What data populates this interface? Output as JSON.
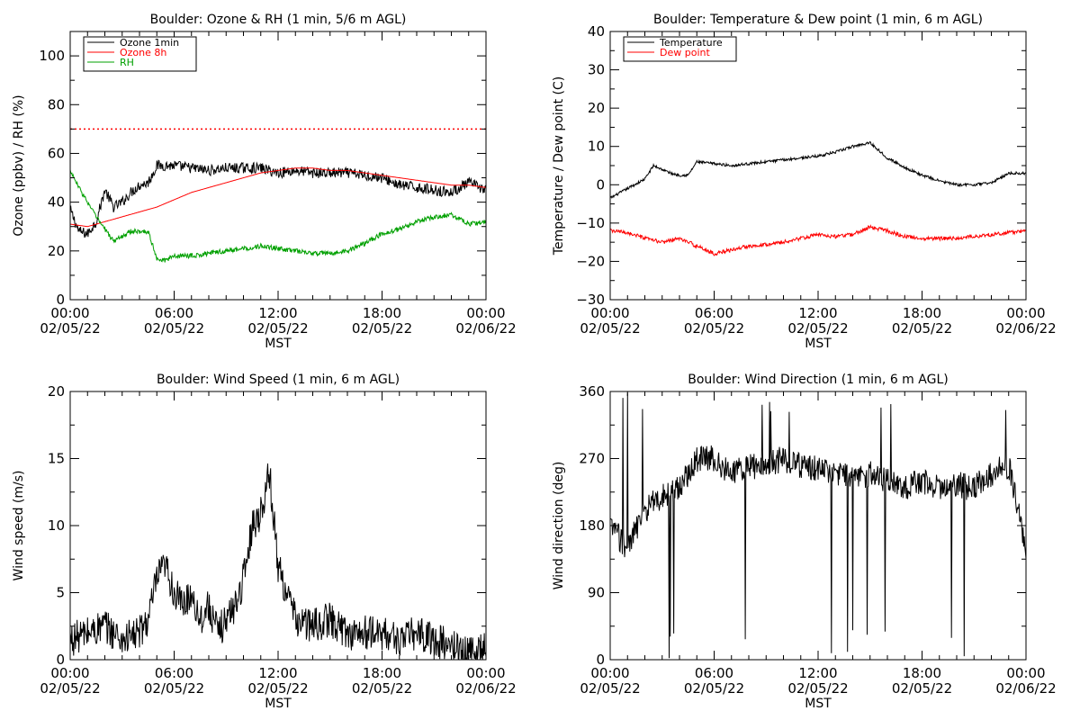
{
  "chart_data": [
    {
      "type": "line",
      "title": "Boulder: Ozone & RH (1 min, 5/6 m AGL)",
      "xlabel": "MST",
      "ylabel": "Ozone (ppbv) / RH (%)",
      "xlim": [
        0,
        24
      ],
      "ylim": [
        0,
        110
      ],
      "yticks": [
        "0",
        "20",
        "40",
        "60",
        "80",
        "100"
      ],
      "ytick_values": [
        0,
        20,
        40,
        60,
        80,
        100
      ],
      "xtick_labels": [
        {
          "time": "00:00",
          "date": "02/05/22"
        },
        {
          "time": "06:00",
          "date": "02/05/22"
        },
        {
          "time": "12:00",
          "date": "02/05/22"
        },
        {
          "time": "18:00",
          "date": "02/05/22"
        },
        {
          "time": "00:00",
          "date": "02/06/22"
        }
      ],
      "xtick_values": [
        0,
        6,
        12,
        18,
        24
      ],
      "legend_position": "top-left",
      "reference_line": {
        "y": 70,
        "color": "#ff0000",
        "style": "dotted"
      },
      "series": [
        {
          "name": "Ozone 1min",
          "color": "#000000",
          "noise": 2.2,
          "x": [
            0,
            0.5,
            1,
            1.5,
            2,
            2.5,
            3,
            3.5,
            4,
            4.5,
            5,
            6,
            7,
            8,
            9,
            10,
            11,
            12,
            13,
            14,
            15,
            16,
            17,
            18,
            19,
            20,
            21,
            22,
            23,
            24
          ],
          "values": [
            37,
            28,
            27,
            32,
            45,
            38,
            40,
            44,
            47,
            48,
            55,
            55,
            54,
            53,
            54,
            54,
            54,
            52,
            53,
            52,
            52,
            52,
            51,
            50,
            47,
            46,
            45,
            44,
            48,
            45
          ]
        },
        {
          "name": "Ozone 8h",
          "color": "#ff0000",
          "noise": 0,
          "x": [
            0,
            1,
            2,
            3,
            4,
            5,
            6,
            7,
            8,
            9,
            10,
            11,
            12,
            13,
            14,
            15,
            16,
            17,
            18,
            19,
            20,
            21,
            22,
            23,
            24
          ],
          "values": [
            31,
            30,
            32,
            34,
            36,
            38,
            41,
            44,
            46,
            48,
            50,
            52,
            53,
            54,
            54,
            53,
            53,
            52,
            51,
            50,
            49,
            48,
            47,
            47,
            46
          ]
        },
        {
          "name": "RH",
          "color": "#00a000",
          "noise": 1.0,
          "x": [
            0,
            0.5,
            1,
            1.5,
            2,
            2.5,
            3,
            3.5,
            4,
            4.5,
            5,
            5.5,
            6,
            7,
            8,
            9,
            10,
            11,
            12,
            13,
            14,
            15,
            16,
            17,
            18,
            19,
            20,
            21,
            22,
            23,
            24
          ],
          "values": [
            53,
            46,
            40,
            34,
            29,
            24,
            26,
            28,
            28,
            28,
            17,
            16,
            18,
            18,
            19,
            20,
            21,
            22,
            21,
            20,
            19,
            19,
            20,
            23,
            27,
            29,
            32,
            34,
            35,
            31,
            32
          ]
        }
      ]
    },
    {
      "type": "line",
      "title": "Boulder: Temperature & Dew point (1 min, 6 m AGL)",
      "xlabel": "MST",
      "ylabel": "Temperature / Dew point (C)",
      "xlim": [
        0,
        24
      ],
      "ylim": [
        -30,
        40
      ],
      "yticks": [
        "−30",
        "−20",
        "−10",
        "0",
        "10",
        "20",
        "30",
        "40"
      ],
      "ytick_values": [
        -30,
        -20,
        -10,
        0,
        10,
        20,
        30,
        40
      ],
      "xtick_labels": [
        {
          "time": "00:00",
          "date": "02/05/22"
        },
        {
          "time": "06:00",
          "date": "02/05/22"
        },
        {
          "time": "12:00",
          "date": "02/05/22"
        },
        {
          "time": "18:00",
          "date": "02/05/22"
        },
        {
          "time": "00:00",
          "date": "02/06/22"
        }
      ],
      "xtick_values": [
        0,
        6,
        12,
        18,
        24
      ],
      "legend_position": "top-left",
      "series": [
        {
          "name": "Temperature",
          "color": "#000000",
          "noise": 0.35,
          "x": [
            0,
            1,
            2,
            2.5,
            3,
            3.5,
            4,
            4.5,
            5,
            6,
            7,
            8,
            9,
            10,
            11,
            12,
            13,
            14,
            14.5,
            15,
            15.5,
            16,
            17,
            18,
            19,
            20,
            21,
            22,
            23,
            24
          ],
          "values": [
            -3.5,
            -1,
            1.5,
            5,
            4,
            3,
            2.5,
            2.5,
            6,
            5.5,
            5,
            5.5,
            6,
            6.5,
            7,
            7.5,
            8.5,
            10,
            10.5,
            11,
            9,
            7,
            4.5,
            2.5,
            1,
            0,
            0,
            0.5,
            3,
            3
          ]
        },
        {
          "name": "Dew point",
          "color": "#ff0000",
          "noise": 0.5,
          "x": [
            0,
            1,
            2,
            3,
            4,
            5,
            6,
            7,
            8,
            9,
            10,
            11,
            12,
            13,
            14,
            15,
            16,
            17,
            18,
            19,
            20,
            21,
            22,
            23,
            24
          ],
          "values": [
            -12,
            -12.5,
            -14,
            -15,
            -14,
            -16,
            -18,
            -17,
            -16,
            -15.5,
            -15,
            -14,
            -13,
            -13.5,
            -13,
            -11,
            -12,
            -13.5,
            -14,
            -14,
            -14,
            -13.5,
            -13,
            -12.5,
            -12
          ]
        }
      ]
    },
    {
      "type": "line",
      "title": "Boulder: Wind Speed (1 min, 6 m AGL)",
      "xlabel": "MST",
      "ylabel": "Wind speed (m/s)",
      "xlim": [
        0,
        24
      ],
      "ylim": [
        0,
        20
      ],
      "yticks": [
        "0",
        "5",
        "10",
        "15",
        "20"
      ],
      "ytick_values": [
        0,
        5,
        10,
        15,
        20
      ],
      "xtick_labels": [
        {
          "time": "00:00",
          "date": "02/05/22"
        },
        {
          "time": "06:00",
          "date": "02/05/22"
        },
        {
          "time": "12:00",
          "date": "02/05/22"
        },
        {
          "time": "18:00",
          "date": "02/05/22"
        },
        {
          "time": "00:00",
          "date": "02/06/22"
        }
      ],
      "xtick_values": [
        0,
        6,
        12,
        18,
        24
      ],
      "series": [
        {
          "name": "Wind speed",
          "color": "#000000",
          "noise": 1.3,
          "floor": 0,
          "x": [
            0,
            1,
            2,
            3,
            4,
            4.5,
            5,
            5.5,
            6,
            6.5,
            7,
            7.5,
            8,
            8.5,
            9,
            9.5,
            10,
            10.5,
            11,
            11.5,
            12,
            12.5,
            13,
            14,
            15,
            16,
            17,
            18,
            19,
            20,
            21,
            22,
            23,
            24
          ],
          "values": [
            1.5,
            2,
            2.5,
            1.5,
            2,
            3,
            6,
            7,
            5,
            4,
            5,
            3,
            4,
            2,
            3,
            4,
            6,
            10,
            11,
            14,
            7,
            5,
            3,
            2.5,
            3,
            2,
            2,
            2,
            1.5,
            2,
            1.5,
            1,
            0.5,
            1
          ]
        }
      ]
    },
    {
      "type": "line",
      "title": "Boulder: Wind Direction (1 min, 6 m AGL)",
      "xlabel": "MST",
      "ylabel": "Wind direction (deg)",
      "xlim": [
        0,
        24
      ],
      "ylim": [
        0,
        360
      ],
      "yticks": [
        "0",
        "90",
        "180",
        "270",
        "360"
      ],
      "ytick_values": [
        0,
        90,
        180,
        270,
        360
      ],
      "xtick_labels": [
        {
          "time": "00:00",
          "date": "02/05/22"
        },
        {
          "time": "06:00",
          "date": "02/05/22"
        },
        {
          "time": "12:00",
          "date": "02/05/22"
        },
        {
          "time": "18:00",
          "date": "02/05/22"
        },
        {
          "time": "00:00",
          "date": "02/06/22"
        }
      ],
      "xtick_values": [
        0,
        6,
        12,
        18,
        24
      ],
      "series": [
        {
          "name": "Wind direction",
          "color": "#000000",
          "noise": 18,
          "spikes": true,
          "floor": 0,
          "ceil": 360,
          "x": [
            0,
            1,
            2,
            3,
            4,
            5,
            6,
            7,
            8,
            9,
            10,
            11,
            12,
            13,
            14,
            15,
            16,
            17,
            18,
            19,
            20,
            21,
            22,
            23,
            24
          ],
          "values": [
            180,
            150,
            200,
            220,
            230,
            270,
            270,
            250,
            260,
            260,
            270,
            260,
            255,
            250,
            245,
            250,
            240,
            230,
            240,
            230,
            235,
            230,
            250,
            260,
            150
          ]
        }
      ]
    }
  ]
}
